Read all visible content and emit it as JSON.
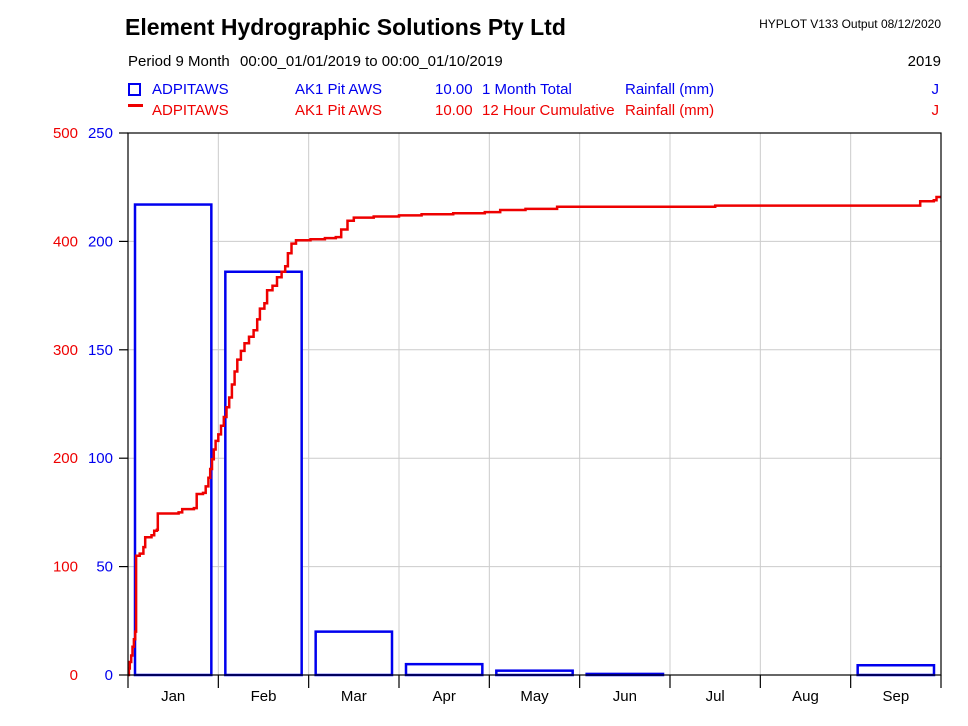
{
  "header": {
    "title": "Element Hydrographic Solutions Pty Ltd",
    "app_info": "HYPLOT V133  Output 08/12/2020",
    "period_label": "Period  9 Month",
    "period_range": "00:00_01/01/2019 to 00:00_01/10/2019",
    "year": "2019"
  },
  "legend": [
    {
      "symbol": "open-square",
      "color": "#0000ee",
      "station": "ADPITAWS",
      "site": "AK1 Pit AWS",
      "interval": "10.00",
      "type": "1 Month Total",
      "variable": "Rainfall (mm)",
      "quality": "J"
    },
    {
      "symbol": "line-dash",
      "color": "#ee0000",
      "station": "ADPITAWS",
      "site": "AK1 Pit AWS",
      "interval": "10.00",
      "type": "12 Hour Cumulative",
      "variable": "Rainfall (mm)",
      "quality": "J"
    }
  ],
  "chart_data": {
    "type": "combo",
    "x_categories": [
      "Jan",
      "Feb",
      "Mar",
      "Apr",
      "May",
      "Jun",
      "Jul",
      "Aug",
      "Sep"
    ],
    "grid": true,
    "grid_color": "#cccccc",
    "axes": {
      "left_inner": {
        "label": "1 Month Total Rainfall (mm)",
        "color": "#0000ee",
        "min": 0,
        "max": 250,
        "ticks": [
          0,
          50,
          100,
          150,
          200,
          250
        ]
      },
      "left_outer": {
        "label": "12 Hour Cumulative Rainfall (mm)",
        "color": "#ee0000",
        "min": 0,
        "max": 500,
        "ticks": [
          0,
          100,
          200,
          300,
          400,
          500
        ]
      }
    },
    "series": [
      {
        "name": "ADPITAWS AK1 Pit AWS 1 Month Total Rainfall (mm)",
        "type": "bar",
        "axis": "left_inner",
        "color": "#0000ee",
        "values": [
          217,
          186,
          20,
          5,
          2,
          0.5,
          0,
          0,
          4.5
        ]
      },
      {
        "name": "ADPITAWS AK1 Pit AWS 12 Hour Cumulative Rainfall (mm)",
        "type": "step-line",
        "axis": "left_outer",
        "color": "#ee0000",
        "points": [
          [
            0,
            0
          ],
          [
            0.01,
            6
          ],
          [
            0.02,
            12
          ],
          [
            0.035,
            18
          ],
          [
            0.05,
            26
          ],
          [
            0.065,
            33
          ],
          [
            0.08,
            40
          ],
          [
            0.09,
            110
          ],
          [
            0.13,
            112
          ],
          [
            0.17,
            118
          ],
          [
            0.19,
            127
          ],
          [
            0.26,
            129
          ],
          [
            0.29,
            133
          ],
          [
            0.32,
            134
          ],
          [
            0.33,
            149
          ],
          [
            0.56,
            150
          ],
          [
            0.6,
            153
          ],
          [
            0.73,
            154
          ],
          [
            0.76,
            167
          ],
          [
            0.83,
            168
          ],
          [
            0.86,
            174
          ],
          [
            0.89,
            182
          ],
          [
            0.91,
            190
          ],
          [
            0.93,
            199
          ],
          [
            0.95,
            208
          ],
          [
            0.97,
            216
          ],
          [
            1.0,
            222
          ],
          [
            1.03,
            230
          ],
          [
            1.06,
            238
          ],
          [
            1.09,
            247
          ],
          [
            1.12,
            256
          ],
          [
            1.15,
            268
          ],
          [
            1.18,
            280
          ],
          [
            1.21,
            291
          ],
          [
            1.25,
            299
          ],
          [
            1.29,
            306
          ],
          [
            1.34,
            312
          ],
          [
            1.39,
            318
          ],
          [
            1.43,
            328
          ],
          [
            1.46,
            338
          ],
          [
            1.51,
            343
          ],
          [
            1.54,
            355
          ],
          [
            1.6,
            359
          ],
          [
            1.65,
            367
          ],
          [
            1.7,
            372
          ],
          [
            1.74,
            377
          ],
          [
            1.77,
            389
          ],
          [
            1.81,
            398
          ],
          [
            1.86,
            401
          ],
          [
            2.02,
            402
          ],
          [
            2.18,
            403
          ],
          [
            2.3,
            404
          ],
          [
            2.36,
            411
          ],
          [
            2.43,
            419
          ],
          [
            2.5,
            422
          ],
          [
            2.72,
            423
          ],
          [
            3.0,
            424
          ],
          [
            3.25,
            425
          ],
          [
            3.6,
            426
          ],
          [
            3.95,
            427
          ],
          [
            4.12,
            429
          ],
          [
            4.4,
            430
          ],
          [
            4.75,
            432
          ],
          [
            5.6,
            432
          ],
          [
            6.5,
            433
          ],
          [
            7.6,
            433
          ],
          [
            8.4,
            433
          ],
          [
            8.74,
            433
          ],
          [
            8.77,
            437
          ],
          [
            8.92,
            438
          ],
          [
            8.95,
            441
          ],
          [
            9.0,
            441
          ]
        ]
      }
    ]
  }
}
